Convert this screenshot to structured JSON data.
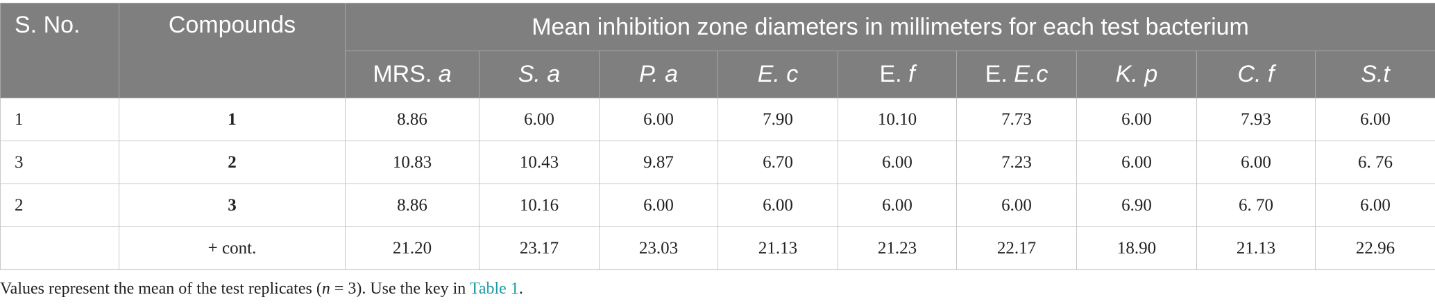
{
  "table": {
    "header": {
      "sno": "S. No.",
      "compounds": "Compounds",
      "group": "Mean inhibition zone diameters in millimeters for each test bacterium",
      "columns": [
        [
          {
            "text": "MRS. ",
            "italic": false
          },
          {
            "text": "a",
            "italic": true
          }
        ],
        [
          {
            "text": "S. a",
            "italic": true
          }
        ],
        [
          {
            "text": "P. a",
            "italic": true
          }
        ],
        [
          {
            "text": "E. c",
            "italic": true
          }
        ],
        [
          {
            "text": "E. ",
            "italic": false
          },
          {
            "text": "f",
            "italic": true
          }
        ],
        [
          {
            "text": "E. ",
            "italic": false
          },
          {
            "text": "E.c",
            "italic": true
          }
        ],
        [
          {
            "text": "K. p",
            "italic": true
          }
        ],
        [
          {
            "text": "C. f",
            "italic": true
          }
        ],
        [
          {
            "text": "S.t",
            "italic": true
          }
        ]
      ]
    },
    "rows": [
      {
        "sno": "1",
        "compound": "1",
        "bold": true,
        "values": [
          "8.86",
          "6.00",
          "6.00",
          "7.90",
          "10.10",
          "7.73",
          "6.00",
          "7.93",
          "6.00"
        ]
      },
      {
        "sno": "3",
        "compound": "2",
        "bold": true,
        "values": [
          "10.83",
          "10.43",
          "9.87",
          "6.70",
          "6.00",
          "7.23",
          "6.00",
          "6.00",
          "6. 76"
        ]
      },
      {
        "sno": "2",
        "compound": "3",
        "bold": true,
        "values": [
          "8.86",
          "10.16",
          "6.00",
          "6.00",
          "6.00",
          "6.00",
          "6.90",
          "6. 70",
          "6.00"
        ]
      },
      {
        "sno": null,
        "compound": "+ cont.",
        "bold": false,
        "values": [
          "21.20",
          "23.17",
          "23.03",
          "21.13",
          "21.23",
          "22.17",
          "18.90",
          "21.13",
          "22.96"
        ]
      }
    ],
    "footnote": [
      {
        "text": "Values represent the mean of the test replicates (",
        "style": "normal"
      },
      {
        "text": "n",
        "style": "italic"
      },
      {
        "text": " = 3). Use the key in ",
        "style": "normal"
      },
      {
        "text": "Table 1",
        "style": "link"
      },
      {
        "text": ".",
        "style": "normal"
      }
    ]
  }
}
